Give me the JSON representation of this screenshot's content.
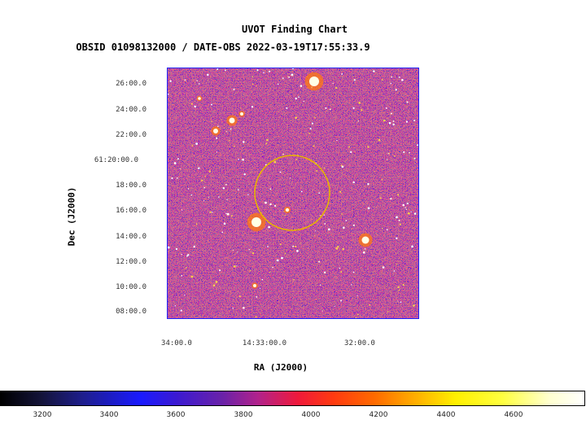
{
  "header": {
    "title": "UVOT Finding Chart",
    "subtitle": "OBSID 01098132000 / DATE-OBS 2022-03-19T17:55:33.9"
  },
  "axes": {
    "x_label": "RA (J2000)",
    "y_label": "Dec (J2000)",
    "x_ticks": [
      "34:00.0",
      "14:33:00.0",
      "32:00.0"
    ],
    "y_ticks": [
      "26:00.0",
      "24:00.0",
      "22:00.0",
      "61:20:00.0",
      "18:00.0",
      "16:00.0",
      "14:00.0",
      "12:00.0",
      "10:00.0",
      "08:00.0"
    ]
  },
  "colorbar": {
    "ticks": [
      "3200",
      "3400",
      "3600",
      "3800",
      "4000",
      "4200",
      "4400",
      "4600"
    ],
    "colormap": "black-blue-red-yellow-white"
  },
  "colors": {
    "background_noise_base": "#1e1ea8",
    "circle": "#e8b400",
    "frame": "#2020ff"
  }
}
